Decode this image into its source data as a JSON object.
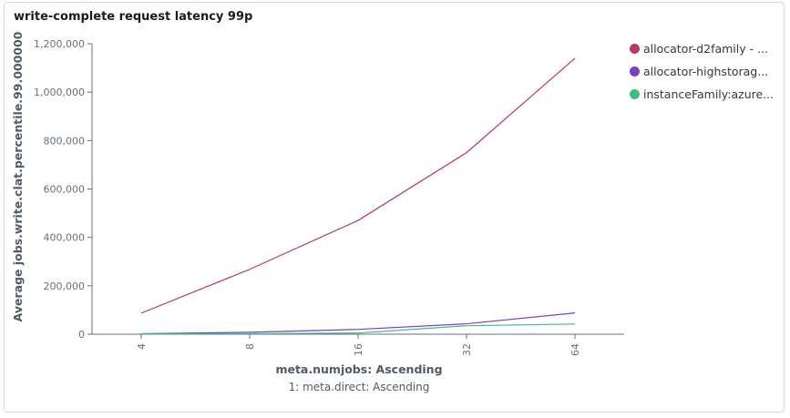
{
  "panel": {
    "title": "write-complete request latency 99p"
  },
  "chart_data": {
    "type": "line",
    "title": "write-complete request latency 99p",
    "xlabel": "meta.numjobs: Ascending",
    "xsublabel": "1: meta.direct: Ascending",
    "ylabel": "Average jobs.write.clat.percentile.99.000000",
    "categories": [
      "4",
      "8",
      "16",
      "32",
      "64"
    ],
    "ylim": [
      0,
      1200000
    ],
    "yticks": [
      0,
      200000,
      400000,
      600000,
      800000,
      1000000,
      1200000
    ],
    "ytick_labels": [
      "0",
      "200,000",
      "400,000",
      "600,000",
      "800,000",
      "1,000,000",
      "1,200,000"
    ],
    "grid": false,
    "legend_position": "right",
    "series": [
      {
        "name": "allocator-d2family - ...",
        "color": "#b9376b",
        "values": [
          87000,
          268000,
          470000,
          750000,
          1140000
        ]
      },
      {
        "name": "allocator-highstorag...",
        "color": "#7a3ec2",
        "values": [
          2000,
          8000,
          20000,
          43000,
          88000
        ]
      },
      {
        "name": "instanceFamily:azure...",
        "color": "#3dbc84",
        "values": [
          1000,
          2000,
          5000,
          35000,
          42000
        ]
      }
    ]
  }
}
